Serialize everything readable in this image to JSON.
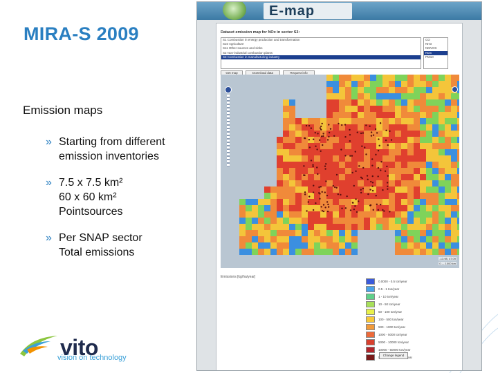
{
  "slide": {
    "title": "MIRA-S 2009",
    "section": "Emission maps",
    "bullet_marker": "»",
    "bullets": [
      {
        "lines": [
          "Starting from different",
          "emission inventories"
        ]
      },
      {
        "lines": [
          "7.5 x 7.5 km²",
          "60 x 60 km²",
          "Pointsources"
        ]
      },
      {
        "lines": [
          "Per SNAP sector",
          "Total emissions"
        ]
      }
    ],
    "colors": {
      "title": "#2a7fc1",
      "bullet": "#2a7fc1",
      "text": "#111111"
    }
  },
  "logo": {
    "word": "vito",
    "tagline": "vision on technology",
    "colors": {
      "word": "#1f2b4d",
      "tagline": "#3aa0d8",
      "swoosh_green": "#8cc63f",
      "swoosh_orange": "#f39200",
      "swoosh_blue": "#3aa0d8"
    }
  },
  "app": {
    "brand": "E-map",
    "form_title": "Dataset emission map for NOx in sector S3:",
    "sectors": [
      {
        "label": "S1 Combustion in energy production and transformation",
        "selected": false
      },
      {
        "label": "S10 Agriculture",
        "selected": false
      },
      {
        "label": "S11 Other sources and sinks",
        "selected": false
      },
      {
        "label": "S2 Non-industrial combustion plants",
        "selected": false
      },
      {
        "label": "S3 Combustion in manufacturing industry",
        "selected": true
      }
    ],
    "pollutants": [
      {
        "label": "CO",
        "selected": false
      },
      {
        "label": "NH3",
        "selected": false
      },
      {
        "label": "NMVOC",
        "selected": false
      },
      {
        "label": "NOx",
        "selected": true
      },
      {
        "label": "PM10",
        "selected": false
      }
    ],
    "buttons": {
      "get_map": "Get map",
      "download": "Download data",
      "request_info": "Request info"
    },
    "map": {
      "scale_text": "0 — 1000 km",
      "coords_text": "-13.98, 47.09",
      "legend_title": "Emissions [kg/ha/year]",
      "legend": [
        {
          "label": "0.0000 - 0.5 ton/year",
          "color": "#3b5bdb"
        },
        {
          "label": "0.5 - 1 ton/year",
          "color": "#4aa3e8"
        },
        {
          "label": "1 - 10 ton/year",
          "color": "#5fd08a"
        },
        {
          "label": "10 - 50 ton/year",
          "color": "#a8e05a"
        },
        {
          "label": "50 - 100 ton/year",
          "color": "#e8f04a"
        },
        {
          "label": "100 - 500 ton/year",
          "color": "#f7c83a"
        },
        {
          "label": "500 - 1000 ton/year",
          "color": "#f29a3a"
        },
        {
          "label": "1000 - 5000 ton/year",
          "color": "#ec6a3a"
        },
        {
          "label": "5000 - 10000 ton/year",
          "color": "#d8402e"
        },
        {
          "label": "10000 - 50000 ton/year",
          "color": "#b3242a"
        },
        {
          "label": "50000 - 100000 ton/year",
          "color": "#7a1a1a"
        }
      ],
      "change_legend": "Change legend",
      "colors": {
        "sea": "#b9c6d2",
        "grid_hot": "#e0402e",
        "grid_warm": "#f08a3a",
        "grid_mild": "#f4c53a",
        "grid_cool": "#7fd35a",
        "grid_cold": "#3b8fe0",
        "point": "#5a1010"
      }
    }
  }
}
